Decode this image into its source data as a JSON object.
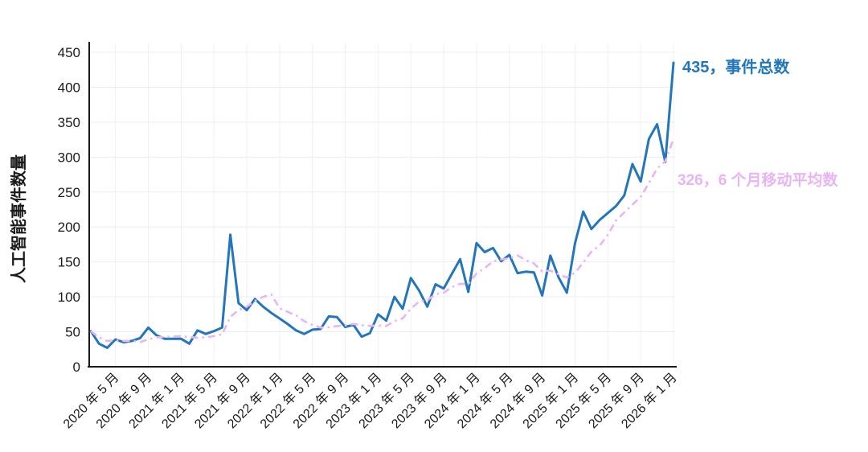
{
  "page": {
    "background": "#ffffff"
  },
  "chart_data": {
    "type": "line",
    "title": "",
    "xlabel": "",
    "ylabel": "人工智能事件数量",
    "ylim": [
      0,
      450
    ],
    "y_ticks": [
      0,
      50,
      100,
      150,
      200,
      250,
      300,
      350,
      400,
      450
    ],
    "x_unit": "monthly",
    "x_range": [
      "2020-02",
      "2026-01"
    ],
    "x_tick_every_n_months": 4,
    "x_tick_labels": [
      "2020 年 5 月",
      "2020 年 9 月",
      "2021 年 1 月",
      "2021 年 5 月",
      "2021 年 9 月",
      "2022 年 1 月",
      "2022 年 5 月",
      "2022 年 9 月",
      "2023 年 1 月",
      "2023 年 5 月",
      "2023 年 9 月",
      "2024 年 1 月",
      "2024 年 5 月",
      "2024 年 9 月",
      "2025 年 1 月",
      "2025 年 5 月",
      "2025 年 9 月",
      "2026 年 1 月"
    ],
    "grid": true,
    "legend_position": "annotations-right",
    "series": [
      {
        "key": "total",
        "name": "事件总数",
        "color": "#2376ba",
        "style": "solid",
        "values": [
          51,
          33,
          27,
          39,
          35,
          37,
          41,
          56,
          45,
          40,
          40,
          40,
          33,
          52,
          47,
          51,
          56,
          189,
          91,
          81,
          97,
          86,
          77,
          69,
          61,
          52,
          47,
          53,
          54,
          72,
          71,
          57,
          60,
          43,
          48,
          75,
          66,
          100,
          83,
          127,
          109,
          86,
          118,
          112,
          133,
          154,
          107,
          177,
          164,
          170,
          151,
          160,
          134,
          136,
          135,
          102,
          159,
          128,
          106,
          177,
          222,
          197,
          210,
          220,
          230,
          245,
          290,
          265,
          326,
          347,
          293,
          435
        ]
      },
      {
        "key": "moving_average",
        "name": "6 个月移动平均数",
        "color": "#e8b4f3",
        "style": "dashdot",
        "values": [
          51,
          42,
          37,
          37.5,
          37,
          37,
          35.3,
          39.2,
          42.2,
          42.3,
          43.2,
          43.7,
          42.3,
          41.7,
          42,
          43.8,
          46.5,
          71.3,
          81,
          85.8,
          94.2,
          100,
          103.5,
          83.5,
          78.5,
          73.7,
          65.3,
          59.8,
          56,
          56.5,
          58.2,
          59,
          61.2,
          59.5,
          58.5,
          59,
          58.2,
          65.3,
          69.2,
          83.2,
          93.3,
          95.2,
          103.8,
          105.8,
          114.2,
          118.7,
          118.3,
          133.5,
          141.2,
          150.8,
          153.8,
          154.8,
          159.3,
          152.5,
          147.7,
          136.3,
          137.7,
          132.3,
          127.7,
          134.5,
          149,
          164.8,
          173.3,
          188.7,
          209.3,
          220.7,
          232,
          243.3,
          262.7,
          283.8,
          294.3,
          326
        ]
      }
    ],
    "annotations": [
      {
        "text": "435，事件总数",
        "value": 435,
        "series": "total",
        "color": "#2376ba"
      },
      {
        "text": "326，6 个月移动平均数",
        "value": 326,
        "series": "moving_average",
        "color": "#e8b4f3"
      }
    ]
  }
}
